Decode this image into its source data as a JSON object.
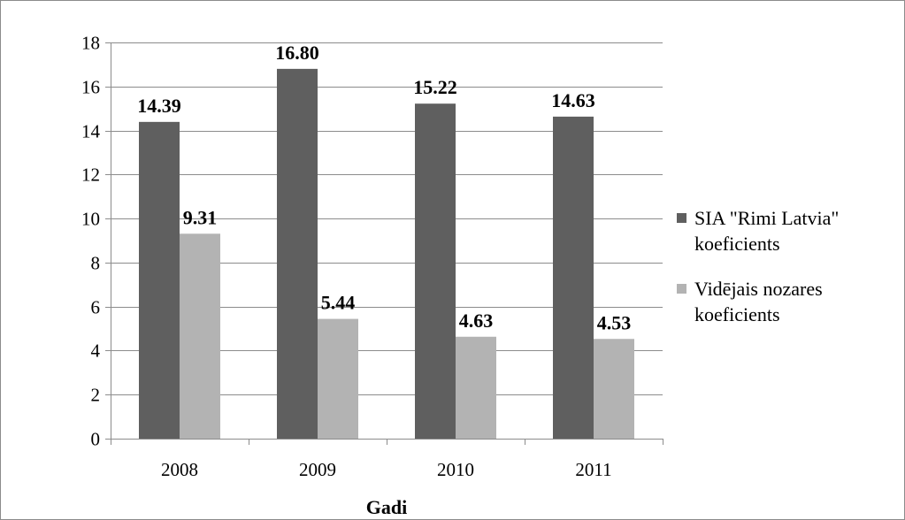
{
  "chart_data": {
    "type": "bar",
    "title": "",
    "xlabel": "Gadi",
    "ylabel": "",
    "categories": [
      "2008",
      "2009",
      "2010",
      "2011"
    ],
    "ylim": [
      0,
      18
    ],
    "yticks": [
      0,
      2,
      4,
      6,
      8,
      10,
      12,
      14,
      16,
      18
    ],
    "grid": true,
    "legend_position": "right",
    "series": [
      {
        "name": "SIA \"Rimi Latvia\" koeficients",
        "legend_lines": [
          "SIA \"Rimi Latvia\"",
          "koeficients"
        ],
        "color": "#5f5f5f",
        "values": [
          14.39,
          16.8,
          15.22,
          14.63
        ],
        "labels": [
          "14.39",
          "16.80",
          "15.22",
          "14.63"
        ]
      },
      {
        "name": "Vidējais nozares koeficients",
        "legend_lines": [
          "Vidējais nozares",
          "koeficients"
        ],
        "color": "#b3b3b3",
        "values": [
          9.31,
          5.44,
          4.63,
          4.53
        ],
        "labels": [
          "9.31",
          "5.44",
          "4.63",
          "4.53"
        ]
      }
    ]
  }
}
